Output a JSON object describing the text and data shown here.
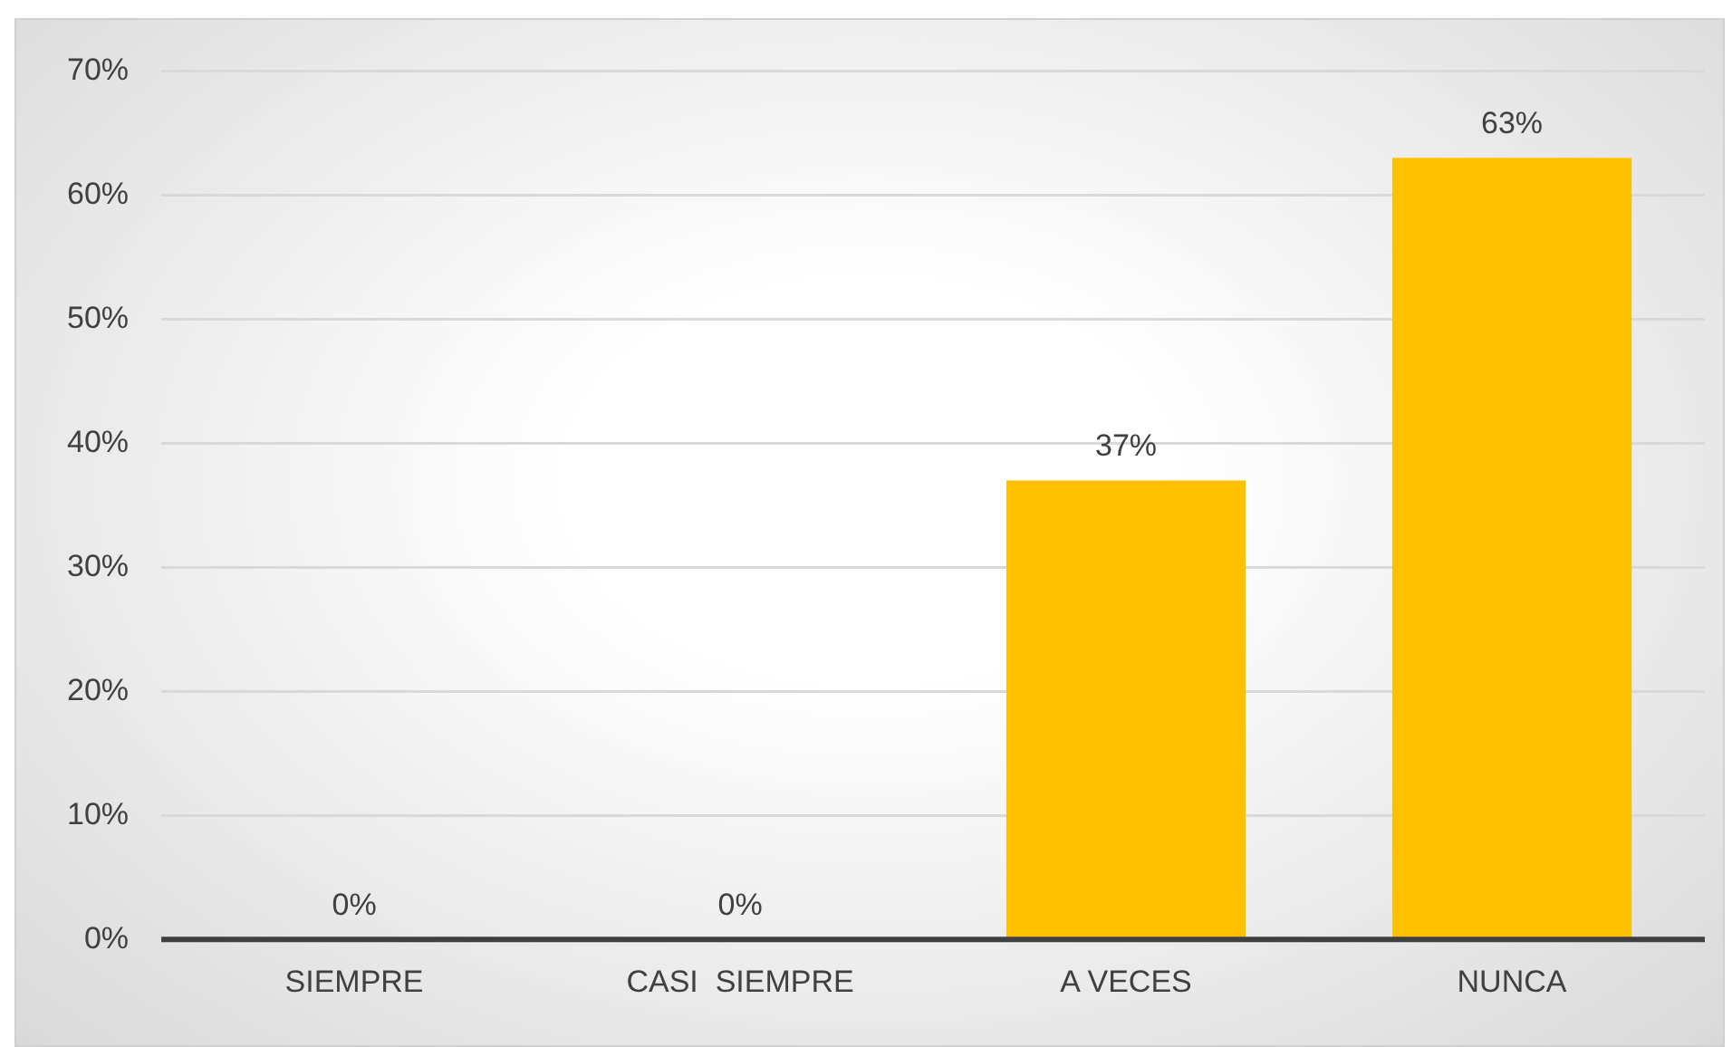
{
  "chart_data": {
    "type": "bar",
    "categories": [
      "SIEMPRE",
      "CASI  SIEMPRE",
      "A VECES",
      "NUNCA"
    ],
    "values": [
      0,
      0,
      37,
      63
    ],
    "value_labels": [
      "0%",
      "0%",
      "37%",
      "63%"
    ],
    "color": "#ffc000",
    "ylim": [
      0,
      70
    ],
    "yticks": [
      {
        "value": 0,
        "label": "0%"
      },
      {
        "value": 10,
        "label": "10%"
      },
      {
        "value": 20,
        "label": "20%"
      },
      {
        "value": 30,
        "label": "30%"
      },
      {
        "value": 40,
        "label": "40%"
      },
      {
        "value": 50,
        "label": "50%"
      },
      {
        "value": 60,
        "label": "60%"
      },
      {
        "value": 70,
        "label": "70%"
      }
    ],
    "grid": "y",
    "legend": false
  }
}
